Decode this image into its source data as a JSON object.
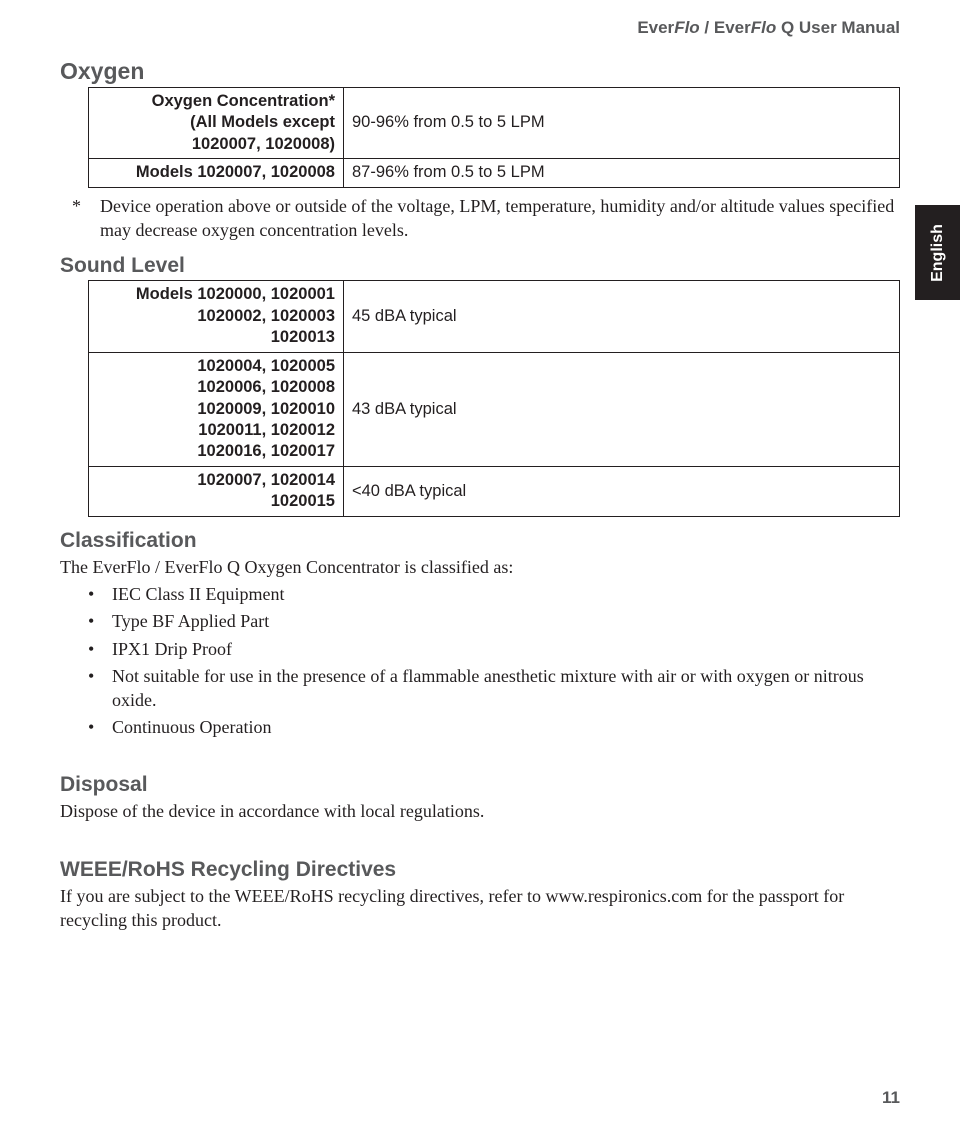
{
  "header": {
    "brand1_prefix": "Ever",
    "brand1_italic": "Flo",
    "brand2_prefix": " / Ever",
    "brand2_italic": "Flo",
    "suffix": " Q User Manual"
  },
  "language_tab": "English",
  "oxygen": {
    "title": "Oxygen",
    "row1_label": "Oxygen Concentration*\n(All Models except\n1020007, 1020008)",
    "row1_value": "90-96% from 0.5 to 5 LPM",
    "row2_label": "Models 1020007, 1020008",
    "row2_value": "87-96% from 0.5 to 5 LPM",
    "footnote": "Device operation above or outside of the voltage, LPM, temperature, humidity and/or altitude values specified may decrease oxygen concentration levels."
  },
  "sound": {
    "title": "Sound Level",
    "row1_label": "Models 1020000, 1020001\n1020002, 1020003\n1020013",
    "row1_value": "45 dBA typical",
    "row2_label": "1020004, 1020005\n1020006, 1020008\n1020009, 1020010\n1020011, 1020012\n1020016, 1020017",
    "row2_value": "43 dBA typical",
    "row3_label": "1020007, 1020014\n1020015",
    "row3_value": "<40 dBA typical"
  },
  "classification": {
    "title": "Classification",
    "intro": "The EverFlo / EverFlo Q Oxygen Concentrator is classified as:",
    "items": [
      "IEC Class II Equipment",
      "Type BF Applied Part",
      "IPX1 Drip Proof",
      "Not suitable for use in the presence of a flammable anesthetic mixture with air or with oxygen or nitrous oxide.",
      "Continuous Operation"
    ]
  },
  "disposal": {
    "title": "Disposal",
    "text": "Dispose of the device in accordance with local regulations."
  },
  "weee": {
    "title": "WEEE/RoHS Recycling Directives",
    "text": "If you are subject to the WEEE/RoHS recycling directives, refer to www.respironics.com for the passport for recycling this product."
  },
  "page_number": "11"
}
